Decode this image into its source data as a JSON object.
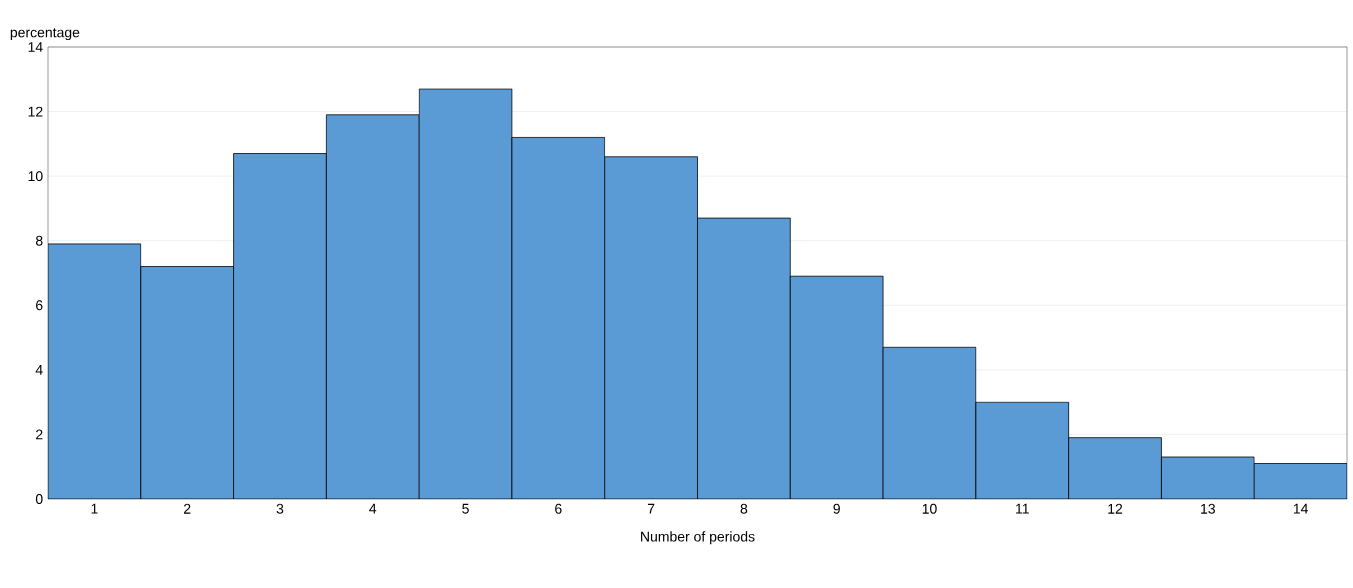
{
  "chart_data": {
    "type": "bar",
    "xlabel": "Number of periods",
    "ylabel": "percentage",
    "categories": [
      "1",
      "2",
      "3",
      "4",
      "5",
      "6",
      "7",
      "8",
      "9",
      "10",
      "11",
      "12",
      "13",
      "14"
    ],
    "values": [
      7.9,
      7.2,
      10.7,
      11.9,
      12.7,
      11.2,
      10.6,
      8.7,
      6.9,
      4.7,
      3.0,
      1.9,
      1.3,
      1.1
    ],
    "color": "#5b9bd5",
    "ylim": [
      0,
      14
    ],
    "yticks": [
      0,
      2,
      4,
      6,
      8,
      10,
      12,
      14
    ],
    "grid": "y"
  }
}
